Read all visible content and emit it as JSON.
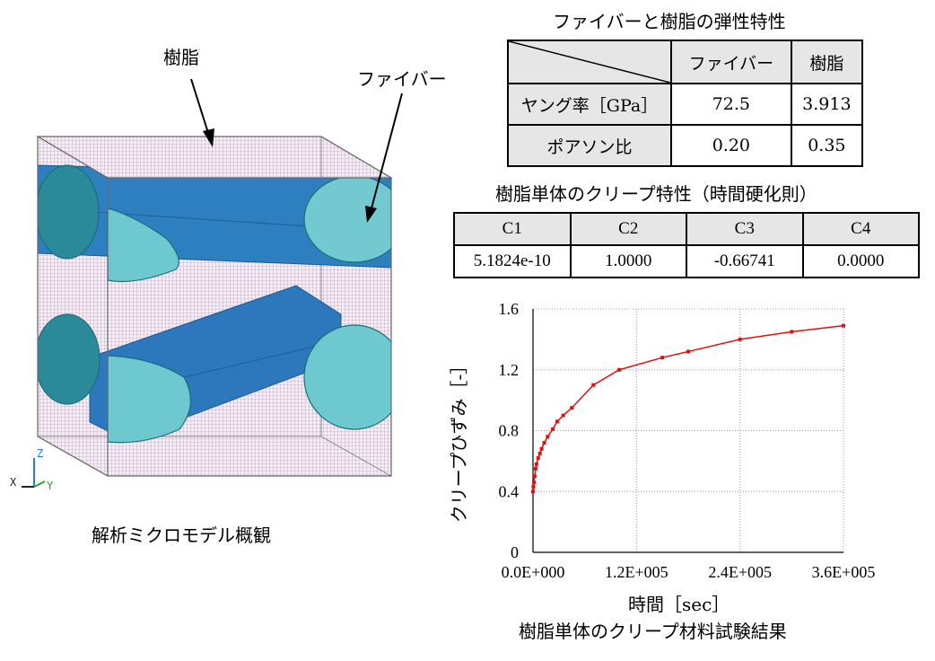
{
  "model": {
    "label_resin": "樹脂",
    "label_fiber": "ファイバー",
    "caption": "解析ミクロモデル概観",
    "axes": {
      "x": "X",
      "y": "Y",
      "z": "Z"
    }
  },
  "elastic_table": {
    "title": "ファイバーと樹脂の弾性特性",
    "headers": [
      "",
      "ファイバー",
      "樹脂"
    ],
    "rows": [
      {
        "name": "ヤング率［GPa］",
        "fiber": "72.5",
        "resin": "3.913"
      },
      {
        "name": "ポアソン比",
        "fiber": "0.20",
        "resin": "0.35"
      }
    ]
  },
  "creep_table": {
    "title": "樹脂単体のクリープ特性（時間硬化則）",
    "headers": [
      "C1",
      "C2",
      "C3",
      "C4"
    ],
    "values": [
      "5.1824e-10",
      "1.0000",
      "-0.66741",
      "0.0000"
    ]
  },
  "chart_data": {
    "type": "line",
    "title": "樹脂単体のクリープ材料試験結果",
    "xlabel": "時間［sec］",
    "ylabel": "クリープひずみ［-］",
    "xlim": [
      0,
      360000
    ],
    "ylim": [
      0,
      1.6
    ],
    "x_ticks": [
      "0.0E+000",
      "1.2E+005",
      "2.4E+005",
      "3.6E+005"
    ],
    "y_ticks": [
      "0",
      "0.4",
      "0.8",
      "1.2",
      "1.6"
    ],
    "grid": true,
    "color": "#dd1111",
    "x": [
      0,
      500,
      1000,
      2000,
      3000,
      4000,
      6000,
      8000,
      10000,
      13000,
      17000,
      23000,
      28000,
      35000,
      45000,
      70000,
      100000,
      150000,
      180000,
      240000,
      300000,
      360000
    ],
    "y": [
      0.4,
      0.43,
      0.46,
      0.5,
      0.55,
      0.58,
      0.62,
      0.65,
      0.68,
      0.72,
      0.76,
      0.81,
      0.86,
      0.9,
      0.95,
      1.1,
      1.2,
      1.28,
      1.32,
      1.4,
      1.45,
      1.49
    ]
  }
}
